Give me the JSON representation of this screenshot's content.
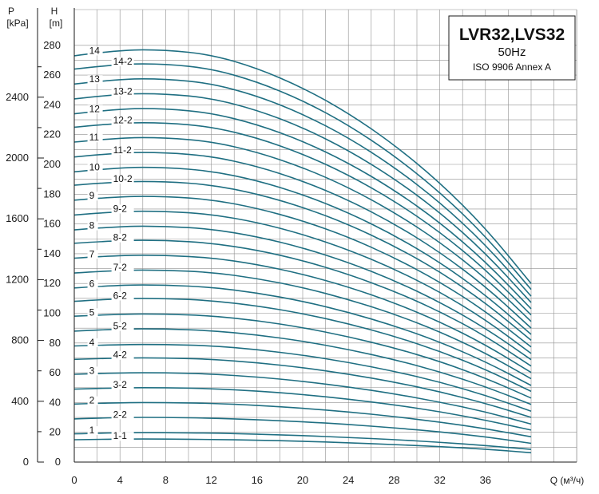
{
  "chart_data": {
    "type": "line",
    "title": "LVR32,LVS32",
    "subtitle": "50Hz",
    "note": "ISO 9906 Annex A",
    "xlabel": "Q (м³/ч)",
    "ylabel": "H",
    "ylabel_unit": "[m]",
    "y2label": "P",
    "y2label_unit": "[kPa]",
    "xlim": [
      0,
      40
    ],
    "ylim": [
      0,
      285
    ],
    "x_ticks": [
      "0",
      "4",
      "8",
      "12",
      "16",
      "20",
      "24",
      "28",
      "32",
      "36"
    ],
    "y_ticks": [
      "0",
      "20",
      "40",
      "60",
      "80",
      "100",
      "120",
      "140",
      "160",
      "180",
      "200",
      "220",
      "240",
      "260",
      "280"
    ],
    "y2_ticks": [
      "0",
      "400",
      "800",
      "1200",
      "1600",
      "2000",
      "2400"
    ],
    "grid": true,
    "x": [
      0,
      4,
      8,
      12,
      16,
      20,
      24,
      28,
      32,
      36,
      40
    ],
    "series": [
      {
        "name": "1-1",
        "values": [
          15,
          15.5,
          15.5,
          15.2,
          14.7,
          14,
          13,
          11.8,
          10.4,
          8.7,
          6.3
        ]
      },
      {
        "name": "1",
        "values": [
          19,
          19.8,
          19.8,
          19.5,
          18.8,
          17.8,
          16.5,
          15.1,
          13.3,
          11.1,
          8.5
        ]
      },
      {
        "name": "2-2",
        "values": [
          29,
          30,
          30,
          29.5,
          28.5,
          27.1,
          25.3,
          23,
          20.3,
          17,
          12.6
        ]
      },
      {
        "name": "2",
        "values": [
          39,
          40,
          40,
          39.5,
          38.1,
          36.2,
          33.7,
          30.6,
          26.9,
          22.5,
          17
        ]
      },
      {
        "name": "3-2",
        "values": [
          49,
          50,
          50,
          49.4,
          47.8,
          45.4,
          42.3,
          38.5,
          33.9,
          28.2,
          21.5
        ]
      },
      {
        "name": "3",
        "values": [
          59,
          60,
          60,
          59.2,
          57.2,
          54.3,
          50.5,
          45.9,
          40.3,
          33.8,
          25.5
        ]
      },
      {
        "name": "4-2",
        "values": [
          69,
          70,
          70,
          69.1,
          66.8,
          63.5,
          59.1,
          53.8,
          47.3,
          39.5,
          30
        ]
      },
      {
        "name": "4",
        "values": [
          78,
          79,
          79,
          78.2,
          75.6,
          71.9,
          67,
          61,
          53.8,
          44.9,
          34.2
        ]
      },
      {
        "name": "5-2",
        "values": [
          88,
          89.5,
          89.5,
          88.3,
          85.5,
          81.3,
          75.7,
          68.9,
          60.7,
          50.7,
          38.7
        ]
      },
      {
        "name": "5",
        "values": [
          98,
          99.5,
          99.5,
          98.3,
          95.1,
          90.4,
          84.3,
          76.8,
          67.7,
          56.5,
          43
        ]
      },
      {
        "name": "6-2",
        "values": [
          108,
          110,
          110,
          108.5,
          105,
          99.8,
          93,
          84.6,
          74.5,
          62.3,
          47.5
        ]
      },
      {
        "name": "6",
        "values": [
          117,
          119,
          119,
          117.5,
          113.7,
          108.1,
          100.7,
          91.6,
          80.7,
          67.5,
          51.5
        ]
      },
      {
        "name": "7-2",
        "values": [
          127,
          129,
          129,
          127.5,
          123.4,
          117.3,
          109.3,
          99.5,
          87.6,
          73.3,
          56
        ]
      },
      {
        "name": "7",
        "values": [
          137,
          139,
          139,
          137.3,
          132.8,
          126.3,
          117.7,
          107.1,
          94.3,
          78.9,
          60.2
        ]
      },
      {
        "name": "8-2",
        "values": [
          147,
          149,
          149,
          147.2,
          142.5,
          135.5,
          126.2,
          114.9,
          101.2,
          84.7,
          64.5
        ]
      },
      {
        "name": "8",
        "values": [
          156,
          158.5,
          158.5,
          156.6,
          151.5,
          144,
          134.2,
          122.1,
          107.5,
          90,
          68.8
        ]
      },
      {
        "name": "9-2",
        "values": [
          166,
          168.5,
          168.5,
          166.5,
          161.1,
          153.1,
          142.7,
          129.8,
          114.4,
          95.7,
          73
        ]
      },
      {
        "name": "9",
        "values": [
          176,
          178.5,
          178.5,
          176.4,
          170.6,
          162.2,
          151.2,
          137.5,
          121.1,
          101.4,
          77.3
        ]
      },
      {
        "name": "10-2",
        "values": [
          186,
          188.5,
          188.5,
          186.3,
          180.2,
          171.3,
          159.7,
          145.3,
          128,
          107.1,
          81.8
        ]
      },
      {
        "name": "10",
        "values": [
          195,
          198,
          198,
          195.6,
          189.2,
          179.8,
          167.6,
          152.5,
          134.3,
          112.4,
          85.8
        ]
      },
      {
        "name": "11-2",
        "values": [
          205,
          208,
          208,
          205.5,
          198.8,
          188.9,
          176.1,
          160.2,
          141.1,
          118.1,
          90
        ]
      },
      {
        "name": "11",
        "values": [
          215,
          218,
          218,
          215.4,
          208.3,
          198,
          184.6,
          167.9,
          147.9,
          123.8,
          94.5
        ]
      },
      {
        "name": "12-2",
        "values": [
          225,
          228,
          228,
          225.3,
          217.9,
          207.1,
          193,
          175.6,
          154.7,
          129.5,
          98.8
        ]
      },
      {
        "name": "12",
        "values": [
          234,
          237.5,
          237.5,
          234.6,
          226.9,
          215.7,
          201,
          182.9,
          161.1,
          134.8,
          103
        ]
      },
      {
        "name": "13-2",
        "values": [
          244,
          247.5,
          247.5,
          244.5,
          236.5,
          224.8,
          209.5,
          190.6,
          167.9,
          140.5,
          107.2
        ]
      },
      {
        "name": "13",
        "values": [
          254,
          257.5,
          257.5,
          254.4,
          246.1,
          233.9,
          218,
          198.3,
          174.7,
          146.2,
          111.5
        ]
      },
      {
        "name": "14-2",
        "values": [
          264,
          267.5,
          267.5,
          264.3,
          255.6,
          243,
          226.5,
          206,
          181.5,
          151.9,
          116
        ]
      },
      {
        "name": "14",
        "values": [
          273,
          277,
          277,
          273.7,
          264.7,
          251.6,
          234.5,
          213.3,
          187.9,
          157.3,
          120
        ]
      }
    ]
  }
}
